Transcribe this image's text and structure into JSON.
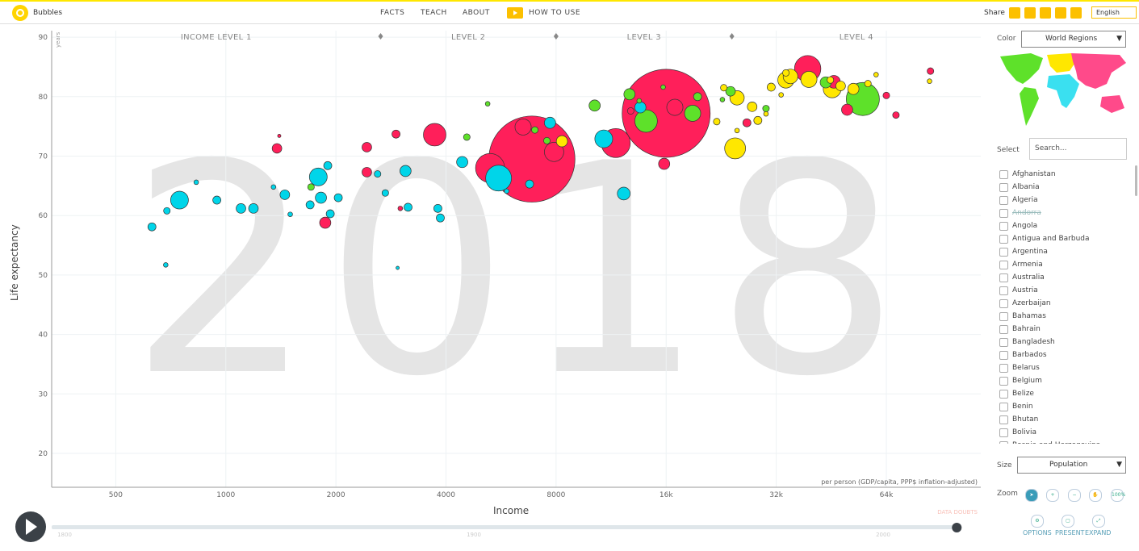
{
  "header": {
    "app": "Bubbles",
    "nav": [
      "FACTS",
      "TEACH",
      "ABOUT",
      "HOW TO USE"
    ],
    "share": "Share",
    "language": "English"
  },
  "chart_data": {
    "type": "scatter",
    "year": "2018",
    "y_label": "Life expectancy",
    "y_unit": "years",
    "x_label": "Income",
    "x_note": "per person (GDP/capita, PPP$ inflation-adjusted)",
    "levels": [
      "INCOME LEVEL 1",
      "LEVEL 2",
      "LEVEL 3",
      "LEVEL 4"
    ],
    "level_boundaries": [
      2650,
      8000,
      24200
    ],
    "data_doubts": "DATA DOUBTS",
    "log_x": true,
    "grid": true,
    "xlim": [
      334,
      116000
    ],
    "xticks": [
      500,
      1000,
      2000,
      4000,
      8000,
      {
        "value": 16000,
        "label": "16k"
      },
      {
        "value": 32000,
        "label": "32k"
      },
      {
        "value": 64000,
        "label": "64k"
      }
    ],
    "ylim": [
      14.3,
      91.1
    ],
    "yticks": [
      20,
      30,
      40,
      50,
      60,
      70,
      80,
      90
    ],
    "series": [
      {
        "color": "#ff1f5a",
        "x": [
          16000,
          6870,
          11650,
          3725,
          5280,
          6500,
          7900,
          39000,
          15800,
          1870,
          2430,
          2430,
          16900,
          46000,
          50000,
          2920,
          1380,
          84500,
          26600,
          12800,
          3000,
          1400,
          64000,
          68000
        ],
        "values": [
          77.2,
          69.5,
          72.2,
          73.6,
          68.0,
          74.9,
          70.7,
          84.7,
          68.7,
          58.8,
          67.3,
          71.5,
          78.2,
          82.5,
          77.8,
          73.7,
          71.3,
          84.3,
          75.6,
          77.6,
          61.2,
          73.4,
          80.2,
          76.9
        ],
        "sizes": [
          1415,
          1354,
          154,
          93,
          154,
          48,
          68,
          127,
          23,
          23,
          17,
          17,
          48,
          30,
          23,
          12,
          17,
          8,
          12,
          8,
          4,
          2,
          8,
          8
        ]
      },
      {
        "color": "#00d5e9",
        "x": [
          5570,
          1790,
          747,
          10800,
          12250,
          1820,
          3100,
          1450,
          4430,
          13600,
          7700,
          1190,
          3150,
          3800,
          945,
          3860,
          690,
          628,
          685,
          2950,
          2030,
          5860,
          2730,
          1900,
          1100,
          1700,
          1930,
          1500,
          2600,
          6770,
          1350,
          830
        ],
        "values": [
          66.3,
          66.5,
          62.6,
          72.9,
          63.7,
          63.0,
          67.5,
          63.5,
          69.0,
          78.2,
          75.6,
          61.2,
          61.4,
          61.2,
          62.6,
          59.6,
          60.8,
          58.1,
          51.7,
          51.2,
          63.0,
          64.1,
          63.8,
          68.4,
          61.2,
          61.8,
          60.3,
          60.2,
          67.0,
          65.3,
          64.8,
          65.6
        ],
        "sizes": [
          122,
          58,
          58,
          58,
          30,
          23,
          23,
          17,
          23,
          23,
          23,
          17,
          12,
          12,
          12,
          12,
          8,
          12,
          4,
          2,
          12,
          4,
          8,
          12,
          17,
          12,
          12,
          4,
          8,
          12,
          4,
          4
        ]
      },
      {
        "color": "#5ee12a",
        "x": [
          55200,
          14100,
          18900,
          12700,
          24000,
          43700,
          10200,
          1710,
          7000,
          7550,
          4560,
          19500,
          15700,
          13500,
          30000,
          22800,
          5200
        ],
        "values": [
          79.6,
          75.9,
          77.2,
          80.4,
          80.9,
          82.4,
          78.5,
          64.8,
          74.4,
          72.6,
          73.2,
          80.0,
          81.6,
          79.3,
          78.0,
          79.5,
          78.8
        ],
        "sizes": [
          200,
          93,
          48,
          23,
          17,
          23,
          23,
          8,
          8,
          8,
          8,
          12,
          4,
          4,
          8,
          4,
          4
        ]
      },
      {
        "color": "#ffe700",
        "x": [
          24700,
          45500,
          39300,
          34000,
          35000,
          25000,
          8300,
          27500,
          48000,
          52000,
          31000,
          57000,
          22000,
          28500,
          34000,
          23000,
          33000,
          25000,
          84000,
          60000,
          30000,
          45000
        ],
        "values": [
          71.3,
          81.3,
          82.9,
          82.8,
          83.4,
          79.8,
          72.5,
          78.3,
          81.8,
          81.3,
          81.6,
          82.2,
          75.8,
          76.0,
          84.0,
          81.5,
          80.3,
          74.3,
          82.6,
          83.7,
          77.1,
          82.8
        ],
        "sizes": [
          80,
          58,
          48,
          48,
          39,
          38,
          23,
          17,
          17,
          23,
          12,
          8,
          8,
          12,
          8,
          8,
          4,
          4,
          4,
          4,
          4,
          8
        ]
      }
    ]
  },
  "timeline": {
    "range": [
      1800,
      2018
    ],
    "value": 2018,
    "ticks": [
      1800,
      1900,
      2000
    ]
  },
  "sidebar": {
    "color_label": "Color",
    "color_value": "World Regions",
    "select_label": "Select",
    "search_placeholder": "Search...",
    "countries": [
      "Afghanistan",
      "Albania",
      "Algeria",
      "Andorra",
      "Angola",
      "Antigua and Barbuda",
      "Argentina",
      "Armenia",
      "Australia",
      "Austria",
      "Azerbaijan",
      "Bahamas",
      "Bahrain",
      "Bangladesh",
      "Barbados",
      "Belarus",
      "Belgium",
      "Belize",
      "Benin",
      "Bhutan",
      "Bolivia",
      "Bosnia and Herzegovina"
    ],
    "size_label": "Size",
    "size_value": "Population",
    "zoom_label": "Zoom",
    "zoom_full": "100%",
    "buttons": [
      "OPTIONS",
      "PRESENT",
      "EXPAND"
    ]
  }
}
